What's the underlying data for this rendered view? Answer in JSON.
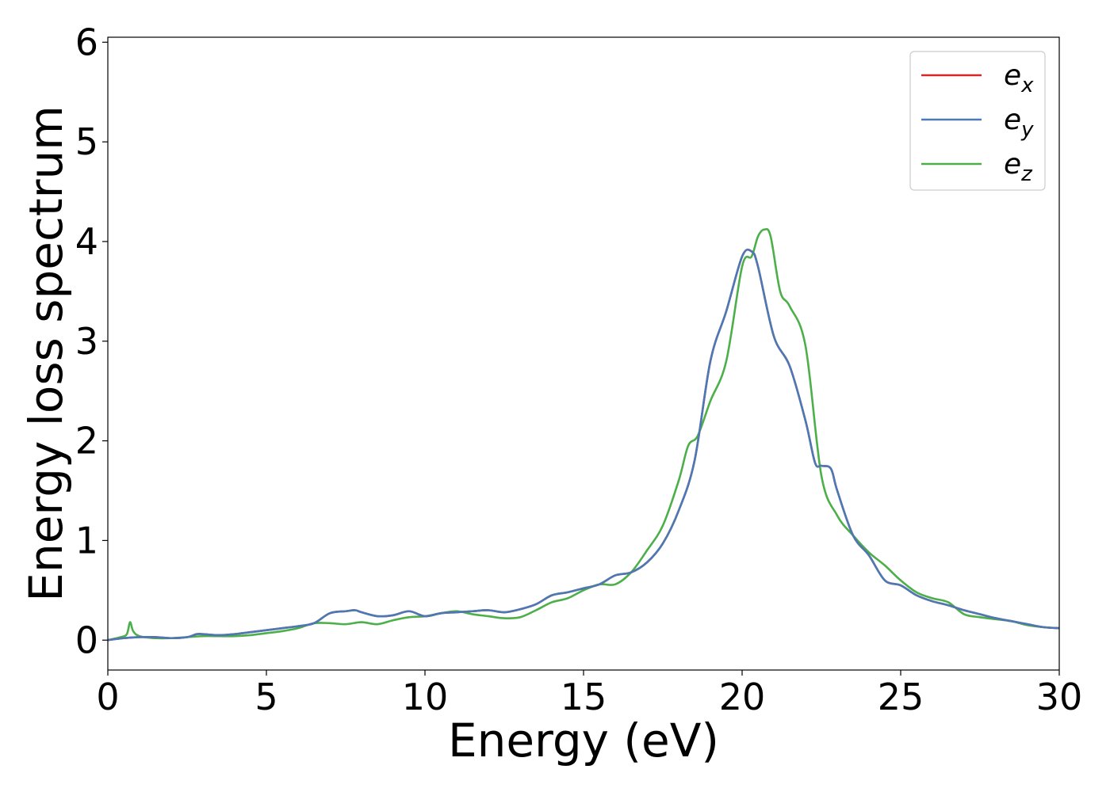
{
  "chart_data": {
    "type": "line",
    "title": "",
    "xlabel": "Energy (eV)",
    "ylabel": "Energy loss spectrum",
    "xlim": [
      0,
      30
    ],
    "ylim": [
      -0.3,
      6.05
    ],
    "xticks": [
      0,
      5,
      10,
      15,
      20,
      25,
      30
    ],
    "yticks": [
      0,
      1,
      2,
      3,
      4,
      5,
      6
    ],
    "grid": false,
    "legend_position": "top-right",
    "series": [
      {
        "name": "e_x",
        "legend_base": "e",
        "legend_sub": "x",
        "color": "#d62728",
        "x": [
          0,
          0.5,
          1,
          1.5,
          2,
          2.5,
          2.8,
          3,
          3.5,
          4,
          4.5,
          5,
          5.5,
          6,
          6.5,
          7,
          7.5,
          7.8,
          8,
          8.5,
          9,
          9.5,
          10,
          10.5,
          11,
          11.5,
          12,
          12.5,
          13,
          13.5,
          14,
          14.5,
          15,
          15.5,
          16,
          16.5,
          17,
          17.5,
          18,
          18.5,
          19,
          19.5,
          20,
          20.3,
          20.5,
          21,
          21.5,
          22,
          22.3,
          22.5,
          22.8,
          23,
          23.5,
          24,
          24.5,
          25,
          25.5,
          26,
          26.5,
          27,
          27.5,
          28,
          28.5,
          29,
          29.5,
          30
        ],
        "y": [
          0,
          0.02,
          0.03,
          0.03,
          0.02,
          0.03,
          0.06,
          0.06,
          0.05,
          0.06,
          0.08,
          0.1,
          0.12,
          0.14,
          0.17,
          0.27,
          0.29,
          0.3,
          0.28,
          0.24,
          0.25,
          0.29,
          0.24,
          0.27,
          0.28,
          0.29,
          0.3,
          0.28,
          0.31,
          0.36,
          0.45,
          0.48,
          0.52,
          0.56,
          0.65,
          0.68,
          0.78,
          0.97,
          1.3,
          1.8,
          2.8,
          3.3,
          3.85,
          3.9,
          3.75,
          3.05,
          2.75,
          2.2,
          1.78,
          1.75,
          1.72,
          1.5,
          1.05,
          0.85,
          0.6,
          0.55,
          0.45,
          0.39,
          0.35,
          0.3,
          0.26,
          0.22,
          0.19,
          0.16,
          0.13,
          0.12
        ]
      },
      {
        "name": "e_y",
        "legend_base": "e",
        "legend_sub": "y",
        "color": "#4a7ab5",
        "x": [
          0,
          0.5,
          1,
          1.5,
          2,
          2.5,
          2.8,
          3,
          3.5,
          4,
          4.5,
          5,
          5.5,
          6,
          6.5,
          7,
          7.5,
          7.8,
          8,
          8.5,
          9,
          9.5,
          10,
          10.5,
          11,
          11.5,
          12,
          12.5,
          13,
          13.5,
          14,
          14.5,
          15,
          15.5,
          16,
          16.5,
          17,
          17.5,
          18,
          18.5,
          19,
          19.5,
          20,
          20.3,
          20.5,
          21,
          21.5,
          22,
          22.3,
          22.5,
          22.8,
          23,
          23.5,
          24,
          24.5,
          25,
          25.5,
          26,
          26.5,
          27,
          27.5,
          28,
          28.5,
          29,
          29.5,
          30
        ],
        "y": [
          0,
          0.02,
          0.03,
          0.03,
          0.02,
          0.03,
          0.06,
          0.06,
          0.05,
          0.06,
          0.08,
          0.1,
          0.12,
          0.14,
          0.17,
          0.27,
          0.29,
          0.3,
          0.28,
          0.24,
          0.25,
          0.29,
          0.24,
          0.27,
          0.28,
          0.29,
          0.3,
          0.28,
          0.31,
          0.36,
          0.45,
          0.48,
          0.52,
          0.56,
          0.65,
          0.68,
          0.78,
          0.97,
          1.3,
          1.8,
          2.8,
          3.3,
          3.85,
          3.9,
          3.75,
          3.05,
          2.75,
          2.2,
          1.78,
          1.75,
          1.72,
          1.5,
          1.05,
          0.85,
          0.6,
          0.55,
          0.45,
          0.39,
          0.35,
          0.3,
          0.26,
          0.22,
          0.19,
          0.16,
          0.13,
          0.12
        ]
      },
      {
        "name": "e_z",
        "legend_base": "e",
        "legend_sub": "z",
        "color": "#4daf4a",
        "x": [
          0,
          0.4,
          0.6,
          0.7,
          0.8,
          1,
          1.5,
          2,
          2.5,
          3,
          3.5,
          4,
          4.5,
          5,
          5.5,
          6,
          6.5,
          7,
          7.5,
          8,
          8.5,
          9,
          9.5,
          10,
          10.5,
          11,
          11.5,
          12,
          12.5,
          13,
          13.5,
          14,
          14.5,
          15,
          15.5,
          16,
          16.5,
          17,
          17.5,
          18,
          18.3,
          18.6,
          19,
          19.5,
          20,
          20.3,
          20.5,
          20.7,
          20.9,
          21.2,
          21.5,
          22,
          22.5,
          23,
          23.5,
          24,
          24.5,
          25,
          25.5,
          26,
          26.5,
          27,
          27.5,
          28,
          28.5,
          29,
          29.5,
          30
        ],
        "y": [
          0,
          0.03,
          0.06,
          0.18,
          0.09,
          0.04,
          0.02,
          0.02,
          0.03,
          0.04,
          0.04,
          0.04,
          0.05,
          0.07,
          0.09,
          0.12,
          0.17,
          0.17,
          0.16,
          0.18,
          0.16,
          0.2,
          0.23,
          0.24,
          0.27,
          0.29,
          0.26,
          0.24,
          0.22,
          0.23,
          0.3,
          0.38,
          0.42,
          0.5,
          0.56,
          0.56,
          0.68,
          0.9,
          1.15,
          1.6,
          1.95,
          2.05,
          2.4,
          2.8,
          3.75,
          3.85,
          4.05,
          4.12,
          4.05,
          3.5,
          3.35,
          2.95,
          1.65,
          1.25,
          1.05,
          0.88,
          0.75,
          0.6,
          0.48,
          0.42,
          0.38,
          0.26,
          0.23,
          0.21,
          0.19,
          0.15,
          0.13,
          0.12
        ]
      }
    ]
  }
}
